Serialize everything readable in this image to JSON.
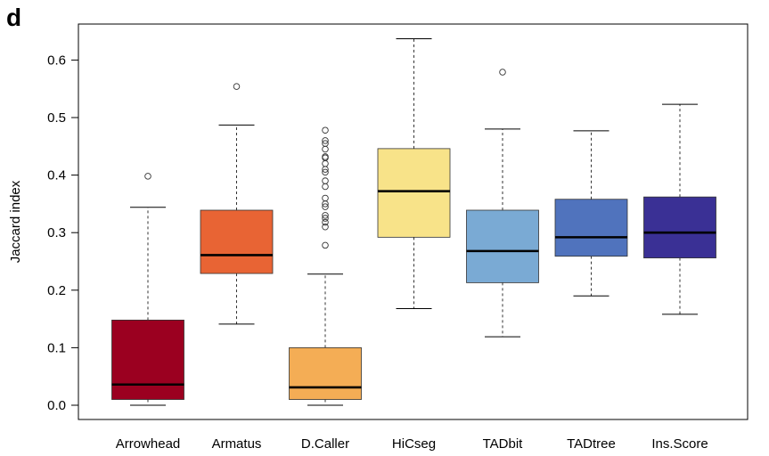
{
  "panel_label": "d",
  "chart_data": {
    "type": "box",
    "ylabel": "Jaccard index",
    "ylim": [
      -0.01,
      0.66
    ],
    "yticks": [
      "0.0",
      "0.1",
      "0.2",
      "0.3",
      "0.4",
      "0.5",
      "0.6"
    ],
    "grid": false,
    "legend": "none",
    "categories": [
      "Arrowhead",
      "Armatus",
      "D.Caller",
      "HiCseg",
      "TADbit",
      "TADtree",
      "Ins.Score"
    ],
    "boxes": [
      {
        "category": "Arrowhead",
        "color": "#9b0020",
        "whisker_low": 0.0,
        "q1": 0.01,
        "median": 0.036,
        "q3": 0.148,
        "whisker_high": 0.344,
        "outliers": [
          0.398
        ]
      },
      {
        "category": "Armatus",
        "color": "#e86434",
        "whisker_low": 0.141,
        "q1": 0.229,
        "median": 0.261,
        "q3": 0.339,
        "whisker_high": 0.487,
        "outliers": [
          0.554
        ]
      },
      {
        "category": "D.Caller",
        "color": "#f4ad55",
        "whisker_low": 0.0,
        "q1": 0.01,
        "median": 0.031,
        "q3": 0.1,
        "whisker_high": 0.228,
        "outliers": [
          0.278,
          0.31,
          0.318,
          0.325,
          0.33,
          0.345,
          0.35,
          0.36,
          0.38,
          0.39,
          0.405,
          0.41,
          0.42,
          0.43,
          0.432,
          0.445,
          0.455,
          0.46,
          0.478
        ]
      },
      {
        "category": "HiCseg",
        "color": "#f8e389",
        "whisker_low": 0.168,
        "q1": 0.292,
        "median": 0.372,
        "q3": 0.446,
        "whisker_high": 0.637,
        "outliers": []
      },
      {
        "category": "TADbit",
        "color": "#7aaad4",
        "whisker_low": 0.119,
        "q1": 0.213,
        "median": 0.268,
        "q3": 0.339,
        "whisker_high": 0.48,
        "outliers": [
          0.579
        ]
      },
      {
        "category": "TADtree",
        "color": "#5073bd",
        "whisker_low": 0.19,
        "q1": 0.259,
        "median": 0.292,
        "q3": 0.358,
        "whisker_high": 0.477,
        "outliers": []
      },
      {
        "category": "Ins.Score",
        "color": "#3a3095",
        "whisker_low": 0.158,
        "q1": 0.256,
        "median": 0.3,
        "q3": 0.362,
        "whisker_high": 0.523,
        "outliers": []
      }
    ]
  }
}
